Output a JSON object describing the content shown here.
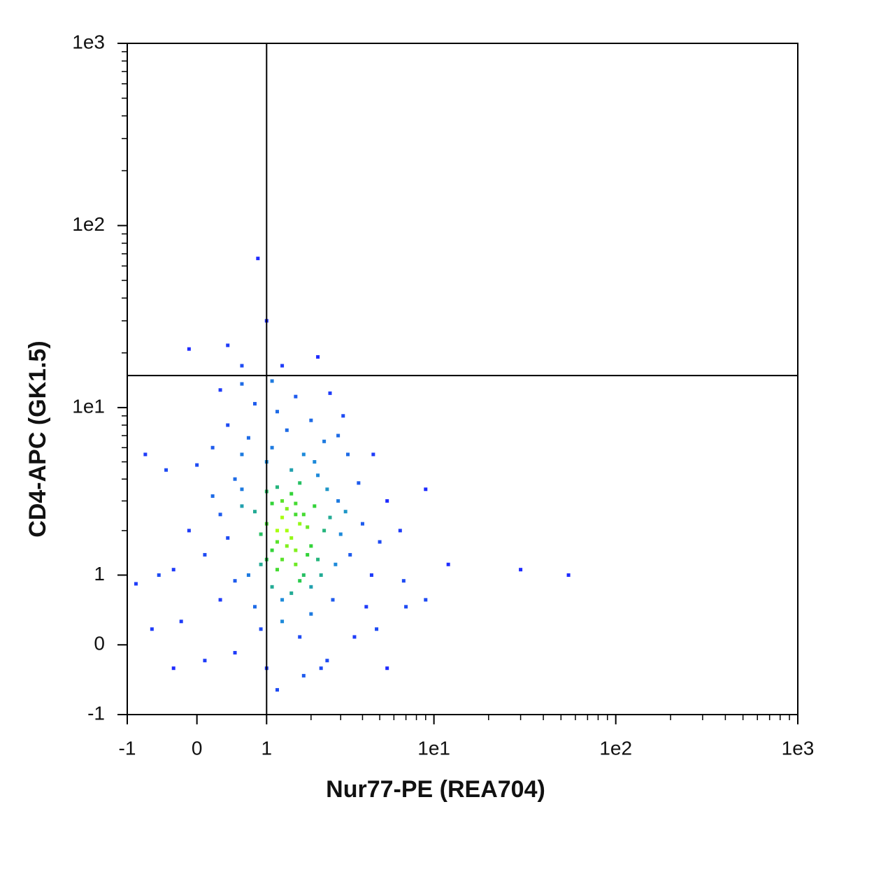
{
  "chart_data": {
    "type": "scatter",
    "scale": "asinh",
    "x_label": "Nur77-PE (REA704)",
    "y_label": "CD4-APC (GK1.5)",
    "xlim": [
      -1,
      1000
    ],
    "ylim": [
      -1,
      1000
    ],
    "xticks": [
      -1,
      0,
      1,
      {
        "value": 10,
        "label": "1e1"
      },
      {
        "value": 100,
        "label": "1e2"
      },
      {
        "value": 1000,
        "label": "1e3"
      }
    ],
    "yticks": [
      -1,
      0,
      1,
      {
        "value": 10,
        "label": "1e1"
      },
      {
        "value": 100,
        "label": "1e2"
      },
      {
        "value": 1000,
        "label": "1e3"
      }
    ],
    "xminorticks": [
      2,
      3,
      4,
      5,
      6,
      7,
      8,
      9,
      20,
      30,
      40,
      50,
      60,
      70,
      80,
      90,
      200,
      300,
      400,
      500,
      600,
      700,
      800,
      900
    ],
    "yminorticks": [
      2,
      3,
      4,
      5,
      6,
      7,
      8,
      9,
      20,
      30,
      40,
      50,
      60,
      70,
      80,
      90,
      200,
      300,
      400,
      500,
      600,
      700,
      800,
      900
    ],
    "gates": {
      "x": 1,
      "y": 15
    },
    "colormap": [
      "#1f2cff",
      "#1d8fd8",
      "#2bd13a",
      "#a8ff10"
    ],
    "x": [
      1.2,
      1.5,
      1.1,
      1.8,
      1.3,
      1.6,
      1.0,
      2.0,
      1.4,
      1.7,
      1.2,
      0.9,
      1.9,
      1.3,
      1.5,
      1.1,
      2.2,
      1.6,
      1.0,
      1.4,
      1.8,
      1.2,
      1.7,
      2.4,
      0.8,
      1.3,
      1.6,
      2.1,
      1.1,
      1.5,
      1.9,
      1.0,
      1.4,
      2.3,
      1.7,
      1.2,
      0.9,
      1.6,
      2.0,
      1.3,
      0.6,
      0.7,
      2.6,
      2.8,
      0.5,
      2.5,
      1.0,
      1.8,
      0.4,
      3.0,
      1.3,
      2.0,
      0.8,
      2.7,
      1.5,
      0.6,
      2.2,
      3.2,
      0.3,
      1.1,
      2.4,
      0.7,
      1.7,
      0.9,
      2.9,
      3.4,
      0.5,
      1.4,
      2.1,
      0.6,
      0.2,
      0.1,
      0.3,
      -0.1,
      4.0,
      4.5,
      3.8,
      4.2,
      0.4,
      1.2,
      2.0,
      2.9,
      0.8,
      1.6,
      3.3,
      0.2,
      3.6,
      2.5,
      1.0,
      0.5,
      1.8,
      -0.2,
      0.0,
      5.0,
      5.5,
      4.8,
      -0.3,
      0.3,
      2.6,
      1.1,
      0.6,
      3.1,
      2.3,
      0.1,
      4.6,
      -0.5,
      -0.6,
      -0.85,
      -0.4,
      -0.7,
      0.4,
      -0.1,
      1.0,
      0.85,
      2.2,
      1.3,
      0.6,
      6.5,
      6.8,
      9,
      7,
      12,
      30,
      55,
      9,
      5.5,
      -0.3,
      1.2
    ],
    "values": [
      2.0,
      1.8,
      1.5,
      2.5,
      3.0,
      1.2,
      2.2,
      1.6,
      2.7,
      0.9,
      1.1,
      1.9,
      2.1,
      2.4,
      3.3,
      0.8,
      1.3,
      2.9,
      1.3,
      1.6,
      1.0,
      3.6,
      2.2,
      2.0,
      2.6,
      0.6,
      1.5,
      2.8,
      2.9,
      0.7,
      1.4,
      3.4,
      2.0,
      1.0,
      3.8,
      1.7,
      1.2,
      2.5,
      0.8,
      1.3,
      2.8,
      1.0,
      2.4,
      1.2,
      4.0,
      3.5,
      5.0,
      5.5,
      1.8,
      1.9,
      0.3,
      0.4,
      0.5,
      0.6,
      4.5,
      3.5,
      4.2,
      2.6,
      2.5,
      6.0,
      6.5,
      6.8,
      0.1,
      0.2,
      3.0,
      1.4,
      0.9,
      7.5,
      5.0,
      5.5,
      3.2,
      1.4,
      0.6,
      2.0,
      2.2,
      1.0,
      3.8,
      0.5,
      8.0,
      9.5,
      8.5,
      7.0,
      10.5,
      11.5,
      5.5,
      6.0,
      0.1,
      -0.2,
      -0.3,
      -0.1,
      -0.4,
      0.3,
      4.8,
      1.7,
      3.0,
      0.2,
      1.1,
      12.5,
      12.0,
      14.0,
      13.5,
      9.0,
      -0.3,
      -0.2,
      5.5,
      1.0,
      0.2,
      0.85,
      4.5,
      5.5,
      22,
      21,
      30,
      66,
      19,
      17,
      17,
      2.0,
      0.9,
      3.5,
      0.5,
      1.2,
      1.1,
      1.0,
      0.6,
      -0.3,
      -0.3,
      -0.6
    ]
  }
}
